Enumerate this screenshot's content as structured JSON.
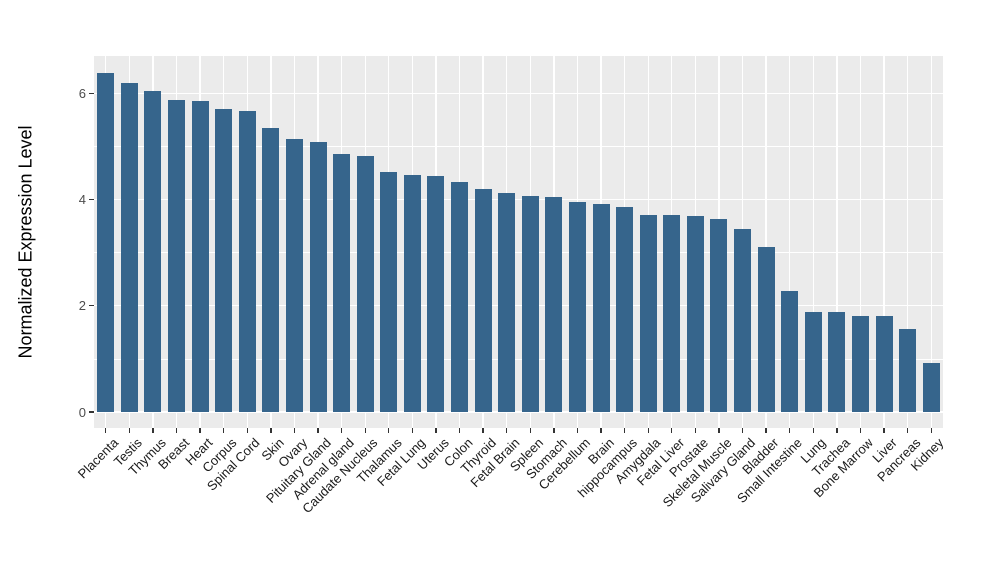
{
  "chart_data": {
    "type": "bar",
    "title": "",
    "xlabel": "",
    "ylabel": "Normalized Expression Level",
    "categories": [
      "Placenta",
      "Testis",
      "Thymus",
      "Breast",
      "Heart",
      "Corpus",
      "Spinal Cord",
      "Skin",
      "Ovary",
      "Pituitary Gland",
      "Adrenal gland",
      "Caudate Nucleus",
      "Thalamus",
      "Fetal Lung",
      "Uterus",
      "Colon",
      "Thyroid",
      "Fetal Brain",
      "Spleen",
      "Stomach",
      "Cerebellum",
      "Brain",
      "hippocampus",
      "Amygdala",
      "Fetal Liver",
      "Prostate",
      "Skeletal Muscle",
      "Salivary Gland",
      "Bladder",
      "Small Intestine",
      "Lung",
      "Trachea",
      "Bone Marrow",
      "Liver",
      "Pancreas",
      "Kidney"
    ],
    "values": [
      6.38,
      6.19,
      6.05,
      5.87,
      5.85,
      5.7,
      5.66,
      5.35,
      5.14,
      5.09,
      4.86,
      4.81,
      4.52,
      4.46,
      4.45,
      4.33,
      4.19,
      4.13,
      4.06,
      4.04,
      3.96,
      3.91,
      3.85,
      3.7,
      3.7,
      3.68,
      3.63,
      3.45,
      3.1,
      2.28,
      1.88,
      1.88,
      1.8,
      1.8,
      1.57,
      0.93
    ],
    "yticks": [
      0,
      2,
      4,
      6
    ],
    "yminor_ticks": [
      1,
      3,
      5
    ],
    "ylim": [
      -0.3,
      6.7
    ],
    "x_label_rotation_deg": 45,
    "grid": true,
    "legend": false,
    "colors": {
      "bar": "#36658C",
      "panel_bg": "#EBEBEB",
      "grid": "#FFFFFF",
      "y_tick_text": "#4D4D4D",
      "x_tick_text": "#1A1A1A",
      "axis_title": "#000000",
      "tick_mark": "#333333",
      "background": "#FFFFFF"
    }
  }
}
